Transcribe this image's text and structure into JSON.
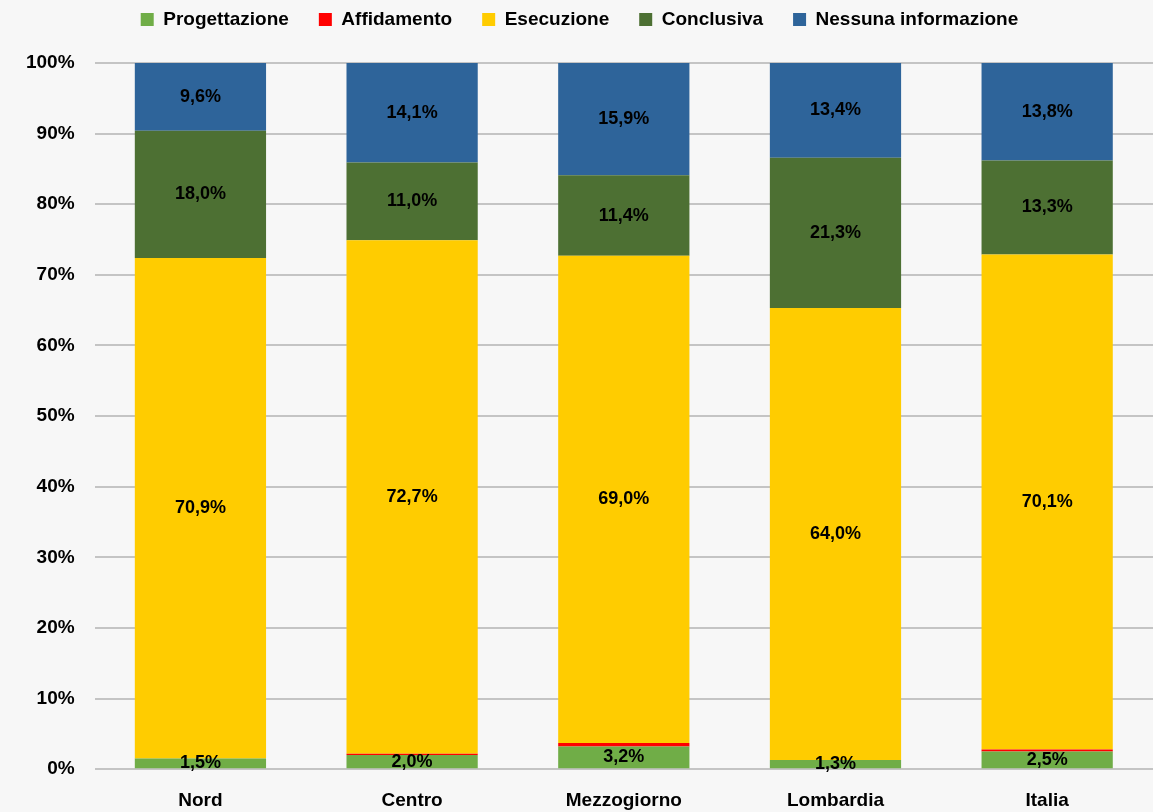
{
  "chart_data": {
    "type": "bar",
    "stacked": true,
    "grid": "y",
    "legend": "top",
    "categories": [
      "Nord",
      "Centro",
      "Mezzogiorno",
      "Lombardia",
      "Italia"
    ],
    "ylim": [
      0,
      100
    ],
    "yticks": [
      {
        "value": 0,
        "label": "0%"
      },
      {
        "value": 10,
        "label": "10%"
      },
      {
        "value": 20,
        "label": "20%"
      },
      {
        "value": 30,
        "label": "30%"
      },
      {
        "value": 40,
        "label": "40%"
      },
      {
        "value": 50,
        "label": "50%"
      },
      {
        "value": 60,
        "label": "60%"
      },
      {
        "value": 70,
        "label": "70%"
      },
      {
        "value": 80,
        "label": "80%"
      },
      {
        "value": 90,
        "label": "90%"
      },
      {
        "value": 100,
        "label": "100%"
      }
    ],
    "series": [
      {
        "name": "Progettazione",
        "color": "#70ad47",
        "values": [
          1.5,
          2.0,
          3.2,
          1.3,
          2.5
        ],
        "value_labels": [
          "1,5%",
          "2,0%",
          "3,2%",
          "1,3%",
          "2,5%"
        ]
      },
      {
        "name": "Affidamento",
        "color": "#ff0000",
        "values": [
          0,
          0.2,
          0.5,
          0,
          0.3
        ]
      },
      {
        "name": "Esecuzione",
        "color": "#ffcc00",
        "values": [
          70.9,
          72.7,
          69.0,
          64.0,
          70.1
        ],
        "value_labels": [
          "70,9%",
          "72,7%",
          "69,0%",
          "64,0%",
          "70,1%"
        ]
      },
      {
        "name": "Conclusiva",
        "color": "#4d7033",
        "values": [
          18.0,
          11.0,
          11.4,
          21.3,
          13.3
        ],
        "value_labels": [
          "18,0%",
          "11,0%",
          "11,4%",
          "21,3%",
          "13,3%"
        ]
      },
      {
        "name": "Nessuna informazione",
        "color": "#2e649a",
        "values": [
          9.6,
          14.1,
          15.9,
          13.4,
          13.8
        ],
        "value_labels": [
          "9,6%",
          "14,1%",
          "15,9%",
          "13,4%",
          "13,8%"
        ]
      }
    ]
  }
}
